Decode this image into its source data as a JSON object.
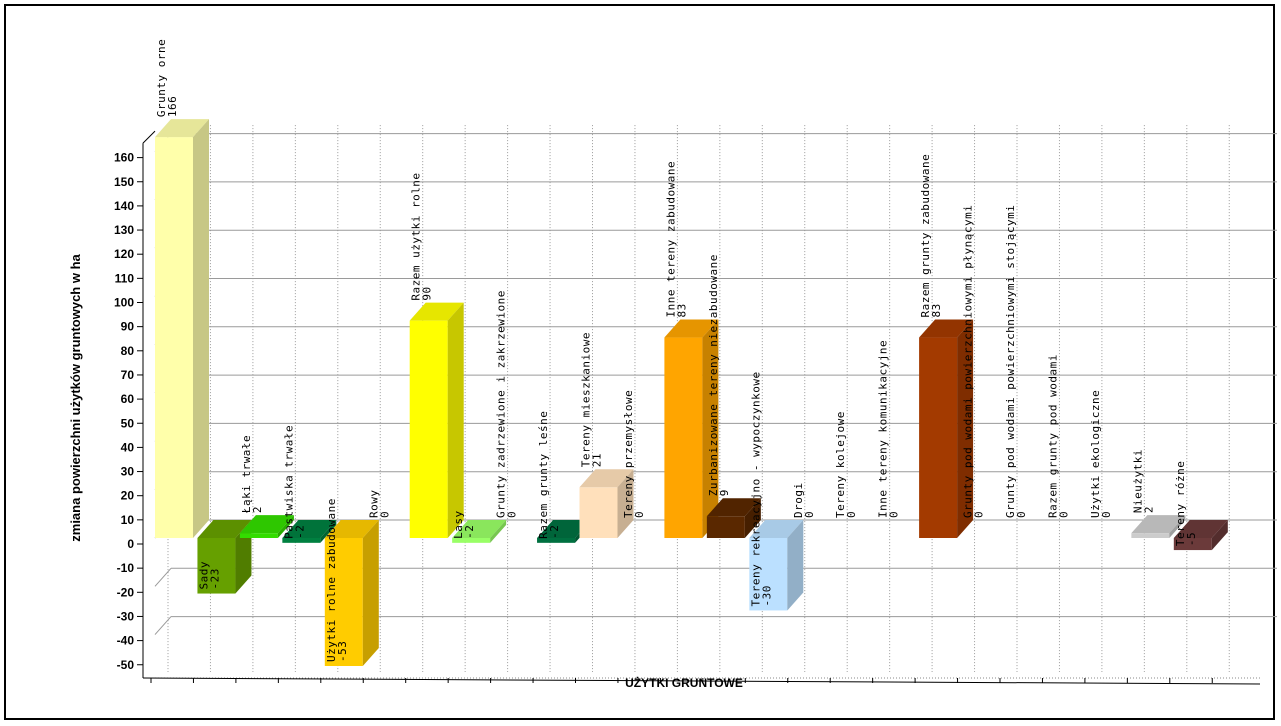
{
  "chart_data": {
    "type": "bar",
    "title": "",
    "xlabel": "UŻYTKI GRUNTOWE",
    "ylabel": "zmiana powierzchni użytków gruntowych w ha",
    "ylim": [
      -50,
      166
    ],
    "yticks": [
      -50,
      -40,
      -30,
      -20,
      -10,
      0,
      10,
      20,
      30,
      40,
      50,
      60,
      70,
      80,
      90,
      100,
      110,
      120,
      130,
      140,
      150,
      160
    ],
    "grid": true,
    "legend": "none",
    "categories": [
      "Grunty orne",
      "Sady",
      "Łąki trwałe",
      "Pastwiska trwałe",
      "Użytki rolne zabudowane",
      "Rowy",
      "Razem użytki rolne",
      "Lasy",
      "Grunty zadrzewione i zakrzewione",
      "Razem grunty leśne",
      "Tereny mieszkaniowe",
      "Tereny przemysłowe",
      "Inne tereny zabudowane",
      "Zurbanizowane tereny niezabudowane",
      "Tereny rekreacyjno - wypoczynkowe",
      "Drogi",
      "Tereny kolejowe",
      "Inne tereny komunikacyjne",
      "Razem grunty zabudowane",
      "Grunty pod wodami powierzchniowymi płynącymi",
      "Grunty pod wodami powierzchniowymi stojącymi",
      "Razem grunty pod wodami",
      "Użytki ekologiczne",
      "Nieużytki",
      "Tereny różne"
    ],
    "values": [
      166,
      -23,
      2,
      -2,
      -53,
      0,
      90,
      -2,
      0,
      -2,
      21,
      0,
      83,
      9,
      -30,
      0,
      0,
      0,
      83,
      0,
      0,
      0,
      0,
      2,
      -5
    ],
    "value_labels": [
      "166",
      "-23",
      "2",
      "-2",
      "-53",
      "0",
      "90",
      "-2",
      "0",
      "-2",
      "21",
      "0",
      "83",
      "9",
      "-30",
      "0",
      "0",
      "0",
      "83",
      "0",
      "0",
      "0",
      "0",
      "2",
      "-5"
    ],
    "colors": [
      "#FFFFAA",
      "#66A000",
      "#33DD00",
      "#008040",
      "#FFCC00",
      "#FFFFFF",
      "#FFFF00",
      "#99FF66",
      "#FFFFFF",
      "#007040",
      "#FFE0BB",
      "#FFFFFF",
      "#FFA500",
      "#5A2800",
      "#BBE0FF",
      "#FFFFFF",
      "#FFFFFF",
      "#FFFFFF",
      "#A33A00",
      "#FFFFFF",
      "#FFFFFF",
      "#FFFFFF",
      "#FFFFFF",
      "#CCCCCC",
      "#6B3A3A"
    ]
  }
}
